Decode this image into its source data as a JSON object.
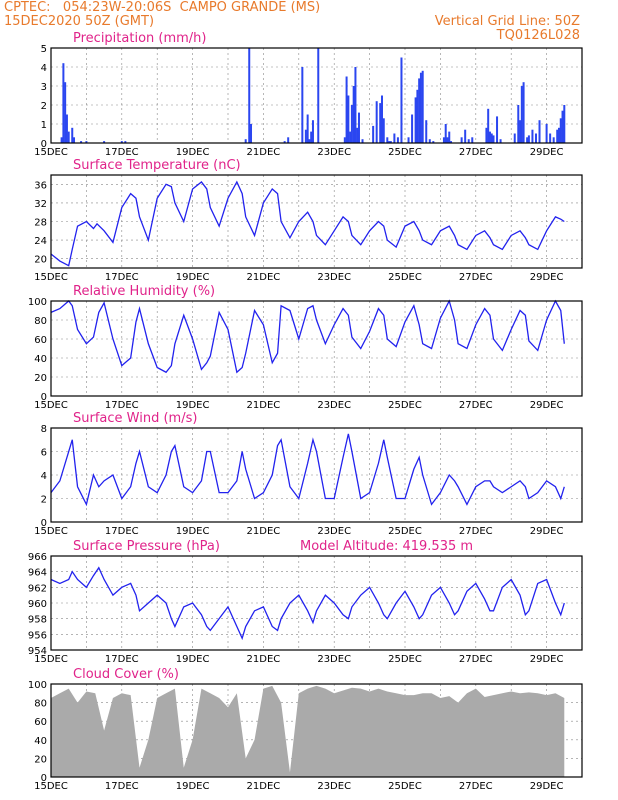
{
  "header": {
    "line1_left": "CPTEC:   054:23W-20:06S  CAMPO GRANDE (MS)",
    "line2_left": "15DEC2020 50Z (GMT)",
    "line2_right": "Vertical Grid Line: 50Z",
    "line3_right": "TQ0126L028"
  },
  "colors": {
    "header": "#e87a2c",
    "title": "#e0238a",
    "line": "#2222ee",
    "bar": "#2b46f0",
    "cloud": "#aaaaaa",
    "axis": "#000000"
  },
  "chart_data": [
    {
      "type": "bar",
      "title": "Precipitation (mm/h)",
      "x_ticks": [
        "15DEC",
        "17DEC",
        "19DEC",
        "21DEC",
        "23DEC",
        "25DEC",
        "27DEC",
        "29DEC"
      ],
      "ylim": [
        0,
        5
      ],
      "y_ticks": [
        0,
        1,
        2,
        3,
        4,
        5
      ],
      "grid": true,
      "day_index": [
        0.3,
        0.35,
        0.4,
        0.45,
        0.5,
        0.6,
        0.65,
        0.85,
        1.0,
        1.5,
        2.0,
        2.1,
        5.5,
        5.6,
        5.65,
        6.6,
        6.7,
        7.1,
        7.2,
        7.25,
        7.3,
        7.35,
        7.4,
        7.55,
        8.3,
        8.35,
        8.4,
        8.45,
        8.5,
        8.55,
        8.6,
        8.65,
        8.7,
        8.8,
        9.1,
        9.2,
        9.3,
        9.35,
        9.4,
        9.5,
        9.55,
        9.6,
        9.7,
        9.8,
        9.9,
        10.1,
        10.2,
        10.3,
        10.35,
        10.4,
        10.45,
        10.5,
        10.6,
        10.7,
        10.8,
        11.1,
        11.15,
        11.2,
        11.25,
        11.3,
        11.6,
        11.7,
        11.8,
        11.9,
        12.3,
        12.35,
        12.4,
        12.45,
        12.5,
        12.6,
        12.7,
        13.1,
        13.2,
        13.25,
        13.3,
        13.35,
        13.45,
        13.5,
        13.6,
        13.7,
        13.8,
        14.0,
        14.1,
        14.2,
        14.3,
        14.35,
        14.4,
        14.45,
        14.5
      ],
      "values": [
        0.3,
        4.2,
        3.2,
        1.5,
        0.6,
        0.8,
        0.3,
        0.1,
        0.1,
        0.1,
        0.1,
        0.1,
        0.2,
        5.0,
        1.0,
        0.1,
        0.3,
        4.0,
        0.7,
        1.5,
        0.2,
        0.6,
        1.2,
        5.0,
        0.3,
        3.5,
        2.5,
        0.6,
        2.0,
        3.0,
        4.0,
        0.8,
        1.6,
        0.2,
        0.9,
        2.2,
        2.1,
        2.5,
        1.3,
        0.3,
        0.1,
        0.1,
        0.5,
        0.3,
        4.5,
        0.3,
        1.5,
        2.4,
        2.8,
        3.4,
        3.7,
        3.8,
        1.2,
        0.2,
        0.1,
        0.3,
        1.0,
        0.3,
        0.6,
        0.1,
        0.3,
        0.7,
        0.2,
        0.3,
        0.8,
        1.8,
        0.6,
        0.5,
        0.4,
        1.4,
        0.2,
        0.5,
        2.0,
        1.2,
        3.0,
        3.2,
        0.3,
        0.4,
        0.7,
        0.5,
        1.2,
        1.0,
        0.5,
        0.3,
        0.7,
        0.8,
        1.3,
        1.7,
        2.0
      ]
    },
    {
      "type": "line",
      "title": "Surface Temperature (nC)",
      "x_ticks": [
        "15DEC",
        "17DEC",
        "19DEC",
        "21DEC",
        "23DEC",
        "25DEC",
        "27DEC",
        "29DEC"
      ],
      "ylim": [
        18,
        38
      ],
      "y_ticks": [
        20,
        24,
        28,
        32,
        36
      ],
      "grid": true,
      "day_index": [
        0,
        0.25,
        0.5,
        0.6,
        0.75,
        1.0,
        1.2,
        1.3,
        1.5,
        1.75,
        2.0,
        2.25,
        2.4,
        2.5,
        2.75,
        3.0,
        3.25,
        3.4,
        3.5,
        3.75,
        4.0,
        4.25,
        4.4,
        4.5,
        4.75,
        5.0,
        5.25,
        5.4,
        5.5,
        5.75,
        6.0,
        6.25,
        6.4,
        6.5,
        6.75,
        7.0,
        7.25,
        7.4,
        7.5,
        7.75,
        8.0,
        8.25,
        8.4,
        8.5,
        8.75,
        9.0,
        9.25,
        9.4,
        9.5,
        9.75,
        10.0,
        10.25,
        10.4,
        10.5,
        10.75,
        11.0,
        11.25,
        11.4,
        11.5,
        11.75,
        12.0,
        12.25,
        12.4,
        12.5,
        12.75,
        13.0,
        13.25,
        13.4,
        13.5,
        13.75,
        14.0,
        14.25,
        14.4,
        14.5
      ],
      "values": [
        21,
        19.5,
        18.5,
        22,
        27,
        28,
        26.5,
        27.5,
        26,
        23.5,
        31,
        34,
        33,
        29,
        24,
        33,
        36,
        35.5,
        32,
        28,
        35,
        36.5,
        35,
        31,
        27,
        33,
        36.5,
        34,
        29,
        25,
        32,
        35,
        34,
        28,
        24.5,
        28,
        30,
        28,
        25,
        23,
        26,
        29,
        28,
        25,
        23,
        26,
        28,
        27,
        24,
        22.5,
        27,
        28,
        26,
        24,
        23,
        26,
        27,
        25,
        23,
        22,
        25,
        26,
        24.5,
        23,
        22,
        25,
        26,
        24.5,
        23,
        22,
        26,
        29,
        28.5,
        28
      ]
    },
    {
      "type": "line",
      "title": "Relative Humidity (%)",
      "x_ticks": [
        "15DEC",
        "17DEC",
        "19DEC",
        "21DEC",
        "23DEC",
        "25DEC",
        "27DEC",
        "29DEC"
      ],
      "ylim": [
        0,
        100
      ],
      "y_ticks": [
        0,
        20,
        40,
        60,
        80,
        100
      ],
      "grid": true,
      "day_index": [
        0,
        0.25,
        0.5,
        0.6,
        0.75,
        1.0,
        1.2,
        1.35,
        1.5,
        1.75,
        2.0,
        2.25,
        2.4,
        2.5,
        2.75,
        3.0,
        3.25,
        3.4,
        3.5,
        3.75,
        4.0,
        4.25,
        4.4,
        4.5,
        4.75,
        5.0,
        5.25,
        5.4,
        5.5,
        5.75,
        6.0,
        6.25,
        6.4,
        6.5,
        6.75,
        7.0,
        7.25,
        7.4,
        7.5,
        7.75,
        8.0,
        8.25,
        8.4,
        8.5,
        8.75,
        9.0,
        9.25,
        9.4,
        9.5,
        9.75,
        10.0,
        10.25,
        10.4,
        10.5,
        10.75,
        11.0,
        11.25,
        11.4,
        11.5,
        11.75,
        12.0,
        12.25,
        12.4,
        12.5,
        12.75,
        13.0,
        13.25,
        13.4,
        13.5,
        13.75,
        14.0,
        14.25,
        14.4,
        14.5
      ],
      "values": [
        88,
        92,
        100,
        95,
        70,
        55,
        62,
        88,
        98,
        60,
        32,
        40,
        78,
        92,
        55,
        30,
        25,
        32,
        55,
        85,
        60,
        28,
        35,
        42,
        88,
        70,
        25,
        30,
        45,
        90,
        75,
        35,
        45,
        95,
        90,
        60,
        92,
        95,
        80,
        55,
        75,
        92,
        85,
        62,
        50,
        68,
        92,
        85,
        60,
        52,
        78,
        95,
        75,
        55,
        50,
        82,
        100,
        80,
        55,
        50,
        75,
        92,
        85,
        60,
        48,
        70,
        90,
        85,
        58,
        48,
        80,
        100,
        90,
        55
      ]
    },
    {
      "type": "line",
      "title": "Surface Wind (m/s)",
      "x_ticks": [
        "15DEC",
        "17DEC",
        "19DEC",
        "21DEC",
        "23DEC",
        "25DEC",
        "27DEC",
        "29DEC"
      ],
      "ylim": [
        0,
        8
      ],
      "y_ticks": [
        0,
        2,
        4,
        6,
        8
      ],
      "grid": true,
      "day_index": [
        0,
        0.25,
        0.5,
        0.6,
        0.75,
        1.0,
        1.2,
        1.35,
        1.5,
        1.75,
        2.0,
        2.25,
        2.4,
        2.5,
        2.75,
        3.0,
        3.25,
        3.4,
        3.5,
        3.75,
        4.0,
        4.25,
        4.4,
        4.5,
        4.75,
        5.0,
        5.25,
        5.4,
        5.5,
        5.75,
        6.0,
        6.25,
        6.4,
        6.5,
        6.75,
        7.0,
        7.25,
        7.4,
        7.5,
        7.75,
        8.0,
        8.25,
        8.4,
        8.5,
        8.75,
        9.0,
        9.25,
        9.4,
        9.5,
        9.75,
        10.0,
        10.25,
        10.4,
        10.5,
        10.75,
        11.0,
        11.25,
        11.4,
        11.5,
        11.75,
        12.0,
        12.25,
        12.4,
        12.5,
        12.75,
        13.0,
        13.25,
        13.4,
        13.5,
        13.75,
        14.0,
        14.25,
        14.4,
        14.5
      ],
      "values": [
        2.5,
        3.5,
        6,
        7,
        3,
        1.5,
        4,
        3,
        3.5,
        4,
        2,
        3,
        5,
        6,
        3,
        2.5,
        4,
        6,
        6.5,
        3,
        2.5,
        3.5,
        6,
        6,
        2.5,
        2.5,
        3.5,
        6,
        4.5,
        2,
        2.5,
        4,
        6.5,
        7,
        3,
        2,
        5,
        7,
        6,
        2,
        2,
        5.5,
        7.5,
        6,
        2,
        2.5,
        5,
        7,
        5.5,
        2,
        2,
        4.5,
        5.5,
        4,
        1.5,
        2.5,
        4,
        3.5,
        3,
        1.5,
        3,
        3.5,
        3.5,
        3,
        2.5,
        3,
        3.5,
        3,
        2,
        2.5,
        3.5,
        3,
        2,
        3
      ]
    },
    {
      "type": "line",
      "title": "Surface Pressure (hPa)",
      "annotation": "Model Altitude: 419.535 m",
      "x_ticks": [
        "15DEC",
        "17DEC",
        "19DEC",
        "21DEC",
        "23DEC",
        "25DEC",
        "27DEC",
        "29DEC"
      ],
      "ylim": [
        954,
        966
      ],
      "y_ticks": [
        954,
        956,
        958,
        960,
        962,
        964,
        966
      ],
      "grid": true,
      "day_index": [
        0,
        0.25,
        0.5,
        0.6,
        0.75,
        1.0,
        1.2,
        1.35,
        1.5,
        1.75,
        2.0,
        2.25,
        2.4,
        2.5,
        2.75,
        3.0,
        3.25,
        3.4,
        3.5,
        3.75,
        4.0,
        4.25,
        4.4,
        4.5,
        4.75,
        5.0,
        5.25,
        5.4,
        5.5,
        5.75,
        6.0,
        6.25,
        6.4,
        6.5,
        6.75,
        7.0,
        7.25,
        7.4,
        7.5,
        7.75,
        8.0,
        8.25,
        8.4,
        8.5,
        8.75,
        9.0,
        9.25,
        9.4,
        9.5,
        9.75,
        10.0,
        10.25,
        10.4,
        10.5,
        10.75,
        11.0,
        11.25,
        11.4,
        11.5,
        11.75,
        12.0,
        12.25,
        12.4,
        12.5,
        12.75,
        13.0,
        13.25,
        13.4,
        13.5,
        13.75,
        14.0,
        14.25,
        14.4,
        14.5
      ],
      "values": [
        963,
        962.5,
        963,
        964,
        963,
        962,
        963.5,
        964.5,
        963,
        961,
        962,
        962.5,
        961,
        959,
        960,
        961,
        960,
        958,
        957,
        959.5,
        960,
        958.5,
        957,
        956.5,
        958,
        959.5,
        957,
        955.5,
        957,
        959,
        959.5,
        957,
        956.5,
        958,
        960,
        961,
        959,
        957.5,
        959,
        961,
        960,
        958.5,
        958,
        959.5,
        961,
        962,
        960,
        958.5,
        958,
        960,
        961.5,
        959.5,
        958,
        958.5,
        961,
        962,
        960,
        958.5,
        959,
        961.5,
        962.5,
        960.5,
        959,
        959,
        962,
        963,
        961,
        958.5,
        959,
        962.5,
        963,
        960,
        958.5,
        960
      ]
    },
    {
      "type": "area",
      "title": "Cloud Cover (%)",
      "x_ticks": [
        "15DEC",
        "17DEC",
        "19DEC",
        "21DEC",
        "23DEC",
        "25DEC",
        "27DEC",
        "29DEC"
      ],
      "ylim": [
        0,
        100
      ],
      "y_ticks": [
        0,
        20,
        40,
        60,
        80,
        100
      ],
      "grid": true,
      "day_index": [
        0,
        0.25,
        0.5,
        0.75,
        1.0,
        1.25,
        1.5,
        1.75,
        2.0,
        2.25,
        2.5,
        2.75,
        3.0,
        3.25,
        3.5,
        3.75,
        4.0,
        4.25,
        4.5,
        4.75,
        5.0,
        5.25,
        5.5,
        5.75,
        6.0,
        6.25,
        6.5,
        6.75,
        7.0,
        7.25,
        7.5,
        7.75,
        8.0,
        8.25,
        8.5,
        8.75,
        9.0,
        9.25,
        9.5,
        9.75,
        10.0,
        10.25,
        10.5,
        10.75,
        11.0,
        11.25,
        11.5,
        11.75,
        12.0,
        12.25,
        12.5,
        12.75,
        13.0,
        13.25,
        13.5,
        13.75,
        14.0,
        14.25,
        14.5
      ],
      "values": [
        85,
        90,
        95,
        80,
        92,
        90,
        50,
        85,
        90,
        88,
        10,
        40,
        85,
        90,
        95,
        10,
        40,
        95,
        90,
        85,
        75,
        90,
        20,
        40,
        95,
        98,
        80,
        5,
        90,
        95,
        98,
        95,
        90,
        93,
        96,
        95,
        92,
        95,
        92,
        90,
        88,
        88,
        90,
        90,
        85,
        87,
        80,
        90,
        95,
        86,
        88,
        90,
        92,
        90,
        91,
        90,
        88,
        90,
        85
      ]
    }
  ]
}
